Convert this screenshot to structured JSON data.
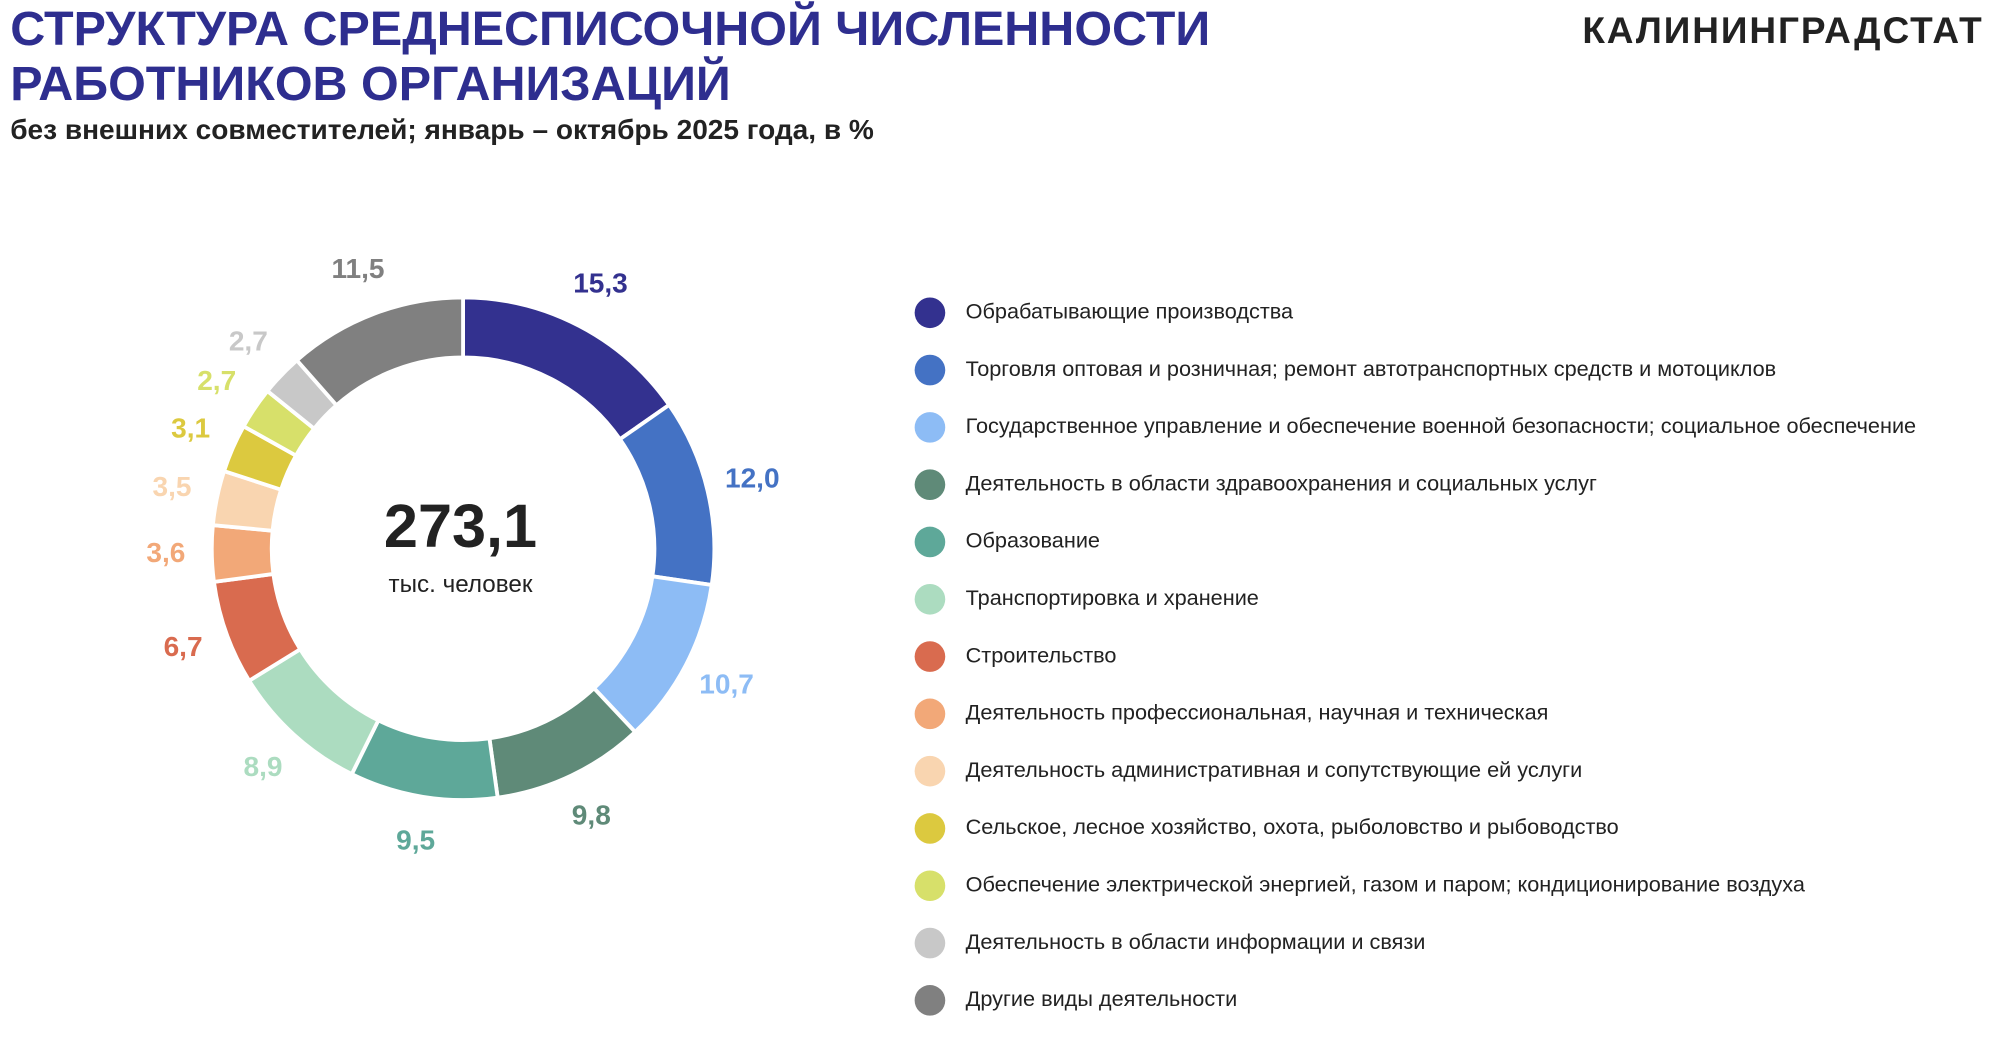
{
  "brand": "КАЛИНИНГРАДСТАТ",
  "chart_data": {
    "type": "donut",
    "title": [
      "СТРУКТУРА СРЕДНЕСПИСОЧНОЙ ЧИСЛЕННОСТИ",
      "РАБОТНИКОВ ОРГАНИЗАЦИЙ"
    ],
    "subtitle": "без внешних совместителей; январь – октябрь 2025 года, в %",
    "center_label": "273,1",
    "center_caption": "тыс. человек",
    "categories": [
      "Обрабатывающие производства",
      "Торговля оптовая и розничная; ремонт автотранспортных средств и мотоциклов",
      "Государственное управление и обеспечение военной безопасности; социальное обеспечение",
      "Деятельность в области здравоохранения и социальных услуг",
      "Образование",
      "Транспортировка и хранение",
      "Строительство",
      "Деятельность профессиональная, научная и техническая",
      "Деятельность административная и сопутствующие ей услуги",
      "Сельское, лесное хозяйство, охота, рыболовство и рыбоводство",
      "Обеспечение электрической энергией, газом и паром; кондиционирование воздуха",
      "Деятельность в области информации и связи",
      "Другие виды деятельности"
    ],
    "values": [
      15.3,
      12.0,
      10.7,
      9.8,
      9.5,
      8.9,
      6.7,
      3.6,
      3.5,
      3.1,
      2.7,
      2.7,
      11.5
    ],
    "value_labels": [
      "15,3",
      "12,0",
      "10,7",
      "9,8",
      "9,5",
      "8,9",
      "6,7",
      "3,6",
      "3,5",
      "3,1",
      "2,7",
      "2,7",
      "11,5"
    ],
    "colors": [
      "#33318f",
      "#4472c4",
      "#8dbcf5",
      "#5f8a78",
      "#5ea899",
      "#acdcc0",
      "#d96b4f",
      "#f2a878",
      "#f9d5b0",
      "#dcc93f",
      "#d7e06a",
      "#c8c8c8",
      "#808080"
    ],
    "legend": "right"
  }
}
